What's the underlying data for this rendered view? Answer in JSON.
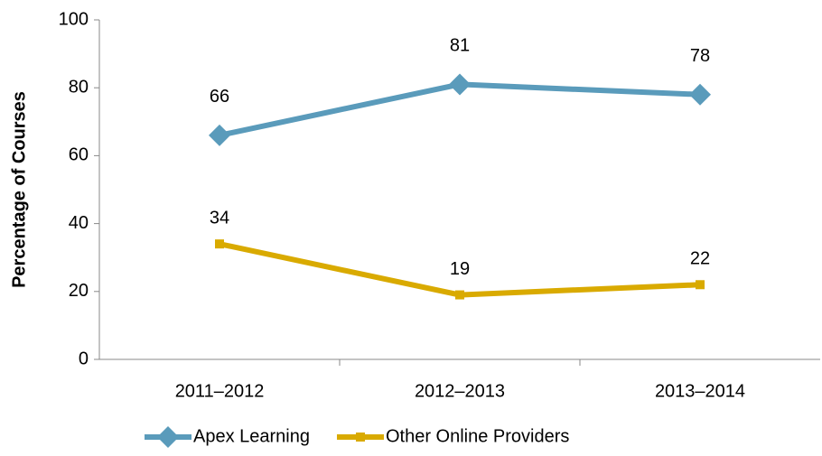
{
  "chart_data": {
    "type": "line",
    "y_label": "Percentage of Courses",
    "categories": [
      "2011–2012",
      "2012–2013",
      "2013–2014"
    ],
    "series": [
      {
        "name": "Apex Learning",
        "color": "#5a9bbb",
        "marker": "diamond",
        "values": [
          66,
          81,
          78
        ]
      },
      {
        "name": "Other Online Providers",
        "color": "#d9aa00",
        "marker": "square",
        "values": [
          34,
          19,
          22
        ]
      }
    ],
    "ylim": [
      0,
      100
    ],
    "yticks": [
      0,
      20,
      40,
      60,
      80,
      100
    ],
    "grid": false,
    "legend": "bottom"
  }
}
